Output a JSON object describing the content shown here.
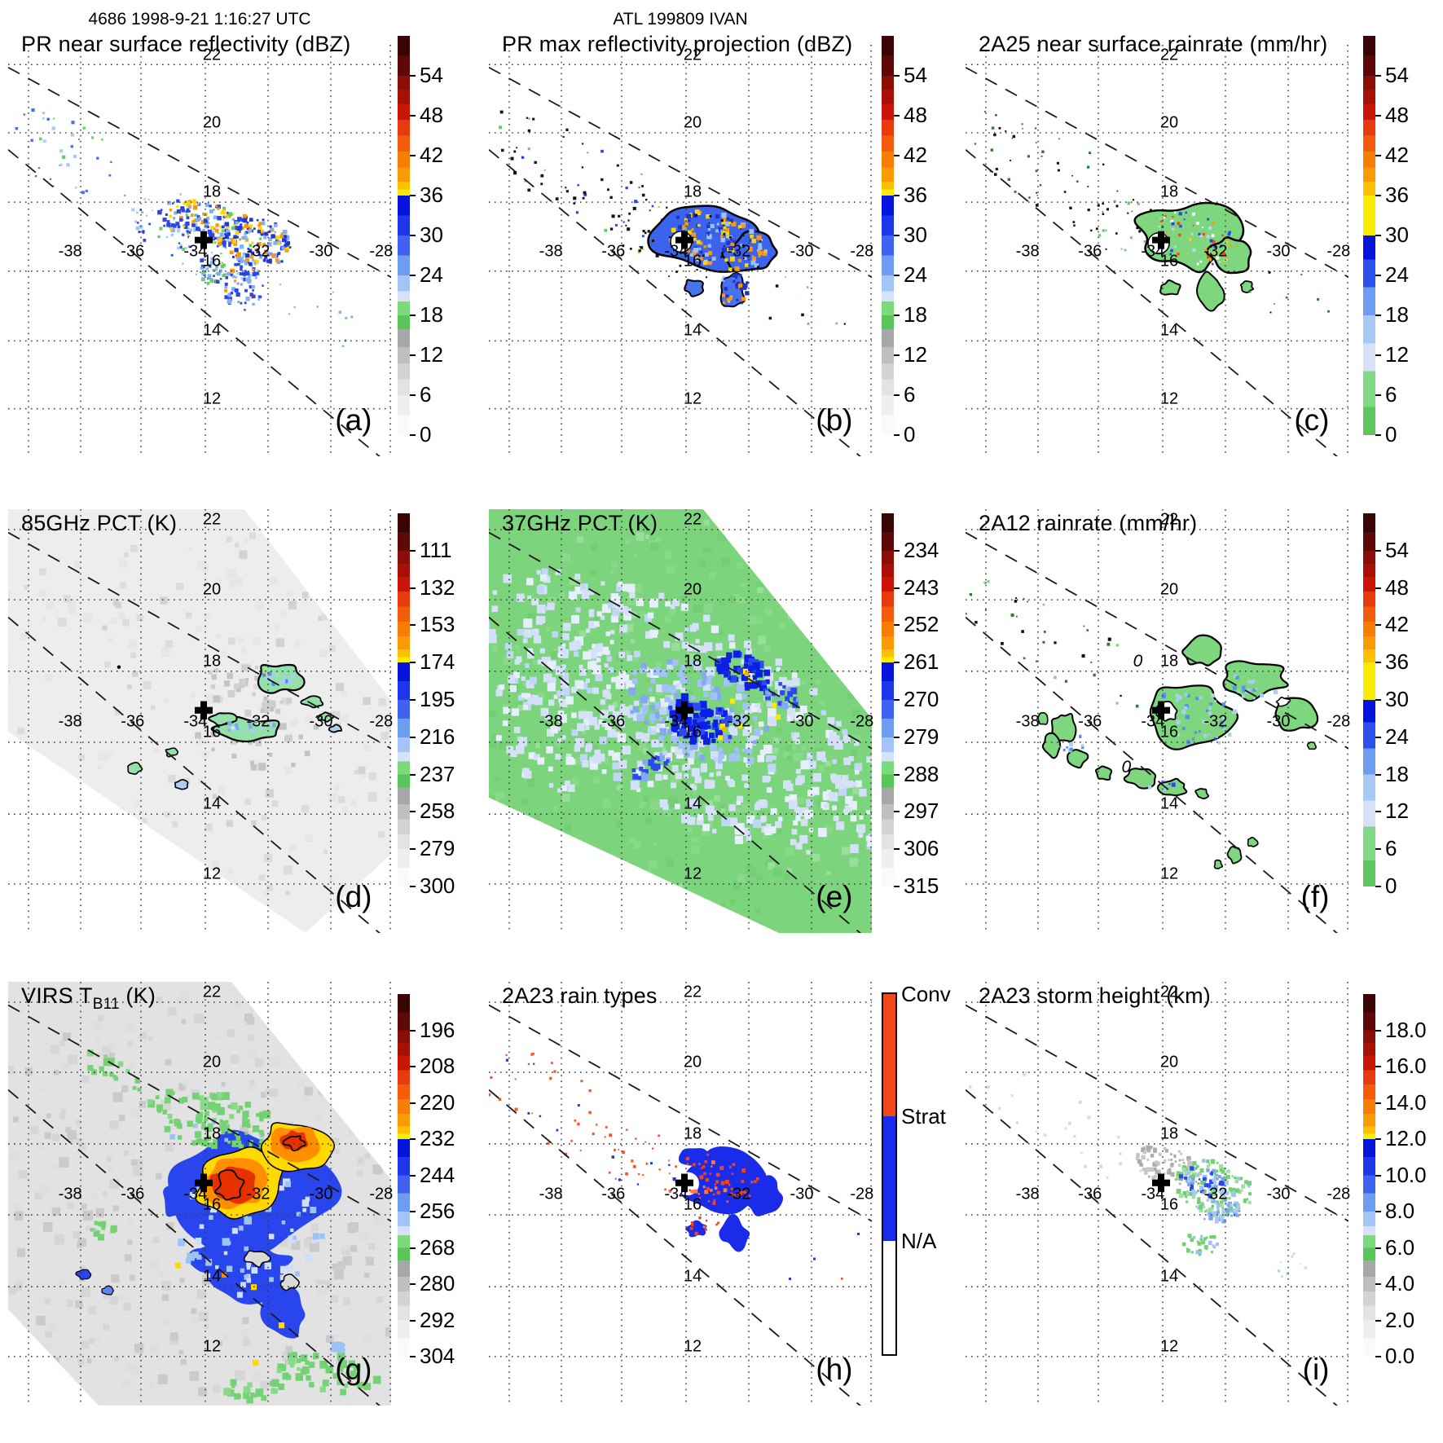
{
  "figure": {
    "suptitle_left": "4686 1998-9-21 1:16:27 UTC",
    "suptitle_center": "ATL 199809 IVAN"
  },
  "grid": {
    "lat_labels": [
      "22",
      "20",
      "18",
      "16",
      "14",
      "12"
    ],
    "lon_labels": [
      "-38",
      "-36",
      "-34",
      "-32",
      "-30",
      "-28"
    ]
  },
  "chart_data": [
    {
      "type": "heatmap",
      "panel_label": "(a)",
      "title": "PR near surface reflectivity (dBZ)",
      "title_sub": "",
      "title_post": "",
      "units": "dBZ",
      "value_range": [
        0,
        54
      ],
      "colorbar_ticks": [
        "54",
        "48",
        "42",
        "36",
        "30",
        "24",
        "18",
        "12",
        "6",
        "0"
      ],
      "lon_range": [
        -40,
        -28
      ],
      "lat_range": [
        11,
        23
      ],
      "storm_center": {
        "lon": -33.9,
        "lat": 16.6
      },
      "features": "speckled cyclone of 20-45 dBZ echoes around center; weak scattered echoes along northwest swath edge"
    },
    {
      "type": "heatmap",
      "panel_label": "(b)",
      "title": "PR max reflectivity projection (dBZ)",
      "title_sub": "",
      "title_post": "",
      "units": "dBZ",
      "value_range": [
        0,
        54
      ],
      "colorbar_ticks": [
        "54",
        "48",
        "42",
        "36",
        "30",
        "24",
        "18",
        "12",
        "6",
        "0"
      ],
      "lon_range": [
        -40,
        -28
      ],
      "lat_range": [
        11,
        23
      ],
      "storm_center": {
        "lon": -33.9,
        "lat": 16.6
      },
      "features": "black-contoured filled echo region with blue 24-33 dBZ and orange/yellow 36-45 dBZ cores; black specks along northwest swath"
    },
    {
      "type": "heatmap",
      "panel_label": "(c)",
      "title": "2A25 near surface rainrate (mm/hr)",
      "title_sub": "",
      "title_post": "",
      "units": "mm/hr",
      "value_range": [
        0,
        54
      ],
      "colorbar_ticks": [
        "54",
        "48",
        "42",
        "36",
        "30",
        "24",
        "18",
        "12",
        "6",
        "0"
      ],
      "lon_range": [
        -40,
        -28
      ],
      "lat_range": [
        11,
        23
      ],
      "storm_center": {
        "lon": -33.9,
        "lat": 16.6
      },
      "features": "green light-rain shield with black outline and embedded blue/orange/red heavier-rain pixels; eye hole near center"
    },
    {
      "type": "heatmap",
      "panel_label": "(d)",
      "title": "85GHz PCT (K)",
      "title_sub": "",
      "title_post": "",
      "units": "K",
      "value_range": [
        111,
        300
      ],
      "colorbar_ticks": [
        "111",
        "132",
        "153",
        "174",
        "195",
        "216",
        "237",
        "258",
        "279",
        "300"
      ],
      "lon_range": [
        -40,
        -28
      ],
      "lat_range": [
        11,
        23
      ],
      "storm_center": {
        "lon": -33.9,
        "lat": 16.6
      },
      "features": "mostly warm ~290 K swath; small 210-240 K depressed-PCT cells (green/blue, black contoured) near and northeast of center"
    },
    {
      "type": "heatmap",
      "panel_label": "(e)",
      "title": "37GHz PCT (K)",
      "title_sub": "",
      "title_post": "",
      "units": "K",
      "value_range": [
        234,
        315
      ],
      "colorbar_ticks": [
        "234",
        "243",
        "252",
        "261",
        "270",
        "279",
        "288",
        "297",
        "306",
        "315"
      ],
      "lon_range": [
        -40,
        -28
      ],
      "lat_range": [
        11,
        23
      ],
      "storm_center": {
        "lon": -33.9,
        "lat": 16.6
      },
      "features": "full TMI swath: green ~288 K background, pale-blue 275-283 K band, deep-blue 265-272 K cells with few yellow ~261 K pixels near center"
    },
    {
      "type": "heatmap",
      "panel_label": "(f)",
      "title": "2A12 rainrate (mm/hr)",
      "title_sub": "",
      "title_post": "",
      "units": "mm/hr",
      "value_range": [
        0,
        54
      ],
      "colorbar_ticks": [
        "54",
        "48",
        "42",
        "36",
        "30",
        "24",
        "18",
        "12",
        "6",
        "0"
      ],
      "contour_labels": [
        "0",
        "0"
      ],
      "lon_range": [
        -40,
        -28
      ],
      "lat_range": [
        11,
        23
      ],
      "storm_center": {
        "lon": -33.9,
        "lat": 16.6
      },
      "features": "black-outlined green 1-6 mm/hr rain areas in spiral-band pattern with light-blue 6-18 mm/hr patches; zero-contour labels"
    },
    {
      "type": "heatmap",
      "panel_label": "(g)",
      "title": "VIRS T",
      "title_sub": "B11",
      "title_post": " (K)",
      "units": "K",
      "value_range": [
        196,
        304
      ],
      "colorbar_ticks": [
        "196",
        "208",
        "220",
        "232",
        "244",
        "256",
        "268",
        "280",
        "292",
        "304"
      ],
      "lon_range": [
        -40,
        -28
      ],
      "lat_range": [
        11,
        23
      ],
      "storm_center": {
        "lon": -33.9,
        "lat": 16.6
      },
      "features": "gray warm ocean/cloud field with large cold cloud shield: blue 240-256 K ring, yellow/orange 208-232 K anvils, red <208 K cores near center and northeast"
    },
    {
      "type": "categorical-map",
      "panel_label": "(h)",
      "title": "2A23 rain types",
      "title_sub": "",
      "title_post": "",
      "units": "",
      "categories": [
        "Conv",
        "Strat",
        "N/A"
      ],
      "colorbar_ticks": [
        "Conv",
        "Strat",
        "N/A"
      ],
      "category_colors": [
        "#f0481a",
        "#1a2cea",
        "#ffffff"
      ],
      "lon_range": [
        -40,
        -28
      ],
      "lat_range": [
        11,
        23
      ],
      "storm_center": {
        "lon": -33.9,
        "lat": 16.6
      },
      "features": "stratiform (blue) region around center with embedded convective (red-orange) pixels; scattered convective specks along northwest swath"
    },
    {
      "type": "heatmap",
      "panel_label": "(i)",
      "title": "2A23 storm height (km)",
      "title_sub": "",
      "title_post": "",
      "units": "km",
      "value_range": [
        0,
        18
      ],
      "colorbar_ticks": [
        "18.0",
        "16.0",
        "14.0",
        "12.0",
        "10.0",
        "8.0",
        "6.0",
        "4.0",
        "2.0",
        "0.0"
      ],
      "lon_range": [
        -40,
        -28
      ],
      "lat_range": [
        11,
        23
      ],
      "storm_center": {
        "lon": -33.9,
        "lat": 16.6
      },
      "features": "storm-top heights near center: gray 2-5 km, green 5-7 km, light-blue 7-9 km, blue 9-11 km pixels; clear eye hole"
    }
  ]
}
